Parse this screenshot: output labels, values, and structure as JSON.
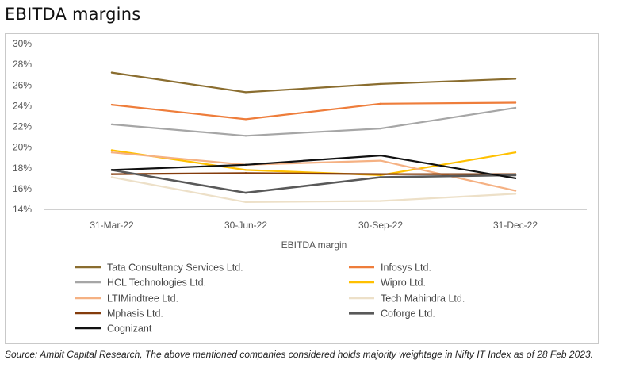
{
  "title": "EBITDA margins",
  "source_note": "Source: Ambit Capital Research, The above mentioned companies considered holds majority weightage in Nifty IT Index as of 28 Feb 2023.",
  "chart_data": {
    "type": "line",
    "title": "EBITDA margins",
    "xlabel": "EBITDA margin",
    "ylabel": "",
    "categories": [
      "31-Mar-22",
      "30-Jun-22",
      "30-Sep-22",
      "31-Dec-22"
    ],
    "ylim": [
      14,
      30
    ],
    "yticks": [
      14,
      16,
      18,
      20,
      22,
      24,
      26,
      28,
      30
    ],
    "ytick_labels": [
      "14%",
      "16%",
      "18%",
      "20%",
      "22%",
      "24%",
      "26%",
      "28%",
      "30%"
    ],
    "grid": false,
    "legend_position": "bottom",
    "series": [
      {
        "name": "Tata Consultancy Services Ltd.",
        "color": "#8a6d2f",
        "values": [
          27.2,
          25.3,
          26.1,
          26.6
        ]
      },
      {
        "name": "Infosys Ltd.",
        "color": "#ee7d3b",
        "values": [
          24.1,
          22.7,
          24.2,
          24.3
        ]
      },
      {
        "name": "HCL Technologies Ltd.",
        "color": "#a6a6a6",
        "values": [
          22.2,
          21.1,
          21.8,
          23.8
        ]
      },
      {
        "name": "Wipro Ltd.",
        "color": "#ffc000",
        "values": [
          19.7,
          17.8,
          17.3,
          19.5
        ]
      },
      {
        "name": "LTIMindtree Ltd.",
        "color": "#f5b183",
        "values": [
          19.5,
          18.3,
          18.7,
          15.8
        ]
      },
      {
        "name": "Tech Mahindra Ltd.",
        "color": "#ede0c8",
        "values": [
          17.1,
          14.7,
          14.8,
          15.5
        ]
      },
      {
        "name": "Mphasis Ltd.",
        "color": "#843c0c",
        "values": [
          17.4,
          17.5,
          17.4,
          17.4
        ]
      },
      {
        "name": "Coforge Ltd.",
        "color": "#595959",
        "values": [
          17.8,
          15.6,
          17.1,
          17.3
        ]
      },
      {
        "name": "Cognizant",
        "color": "#111111",
        "values": [
          17.8,
          18.3,
          19.2,
          17.0
        ]
      }
    ]
  }
}
